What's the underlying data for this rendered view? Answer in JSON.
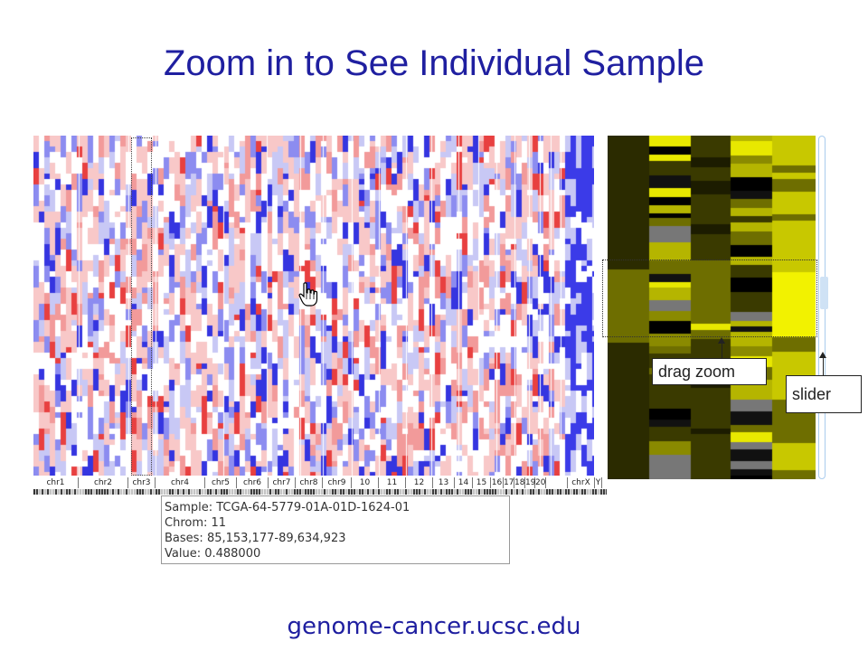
{
  "slide": {
    "title": "Zoom in to See Individual Sample",
    "footer": "genome-cancer.ucsc.edu"
  },
  "chromosomes": [
    "chr1",
    "chr2",
    "chr3",
    "chr4",
    "chr5",
    "chr6",
    "chr7",
    "chr8",
    "chr9",
    "10",
    "11",
    "12",
    "13",
    "14",
    "15",
    "16",
    "17",
    "18",
    "19",
    "20",
    "",
    "chrX",
    "Y"
  ],
  "tooltip": {
    "sample": "Sample: TCGA-64-5779-01A-01D-1624-01",
    "chrom": "Chrom: 11",
    "bases": "Bases: 85,153,177-89,634,923",
    "value": "Value: 0.488000"
  },
  "callouts": {
    "drag_zoom": "drag zoom",
    "slider": "slider"
  },
  "colors": {
    "title": "#1f1fa0",
    "heat_red": "#e83030",
    "heat_blue": "#2a2ae0",
    "clinical_yellow": "#e8e800",
    "clinical_olive": "#6e6e00",
    "clinical_dark": "#1a1a1a"
  },
  "icons": {
    "cursor": "hand-pointer-icon"
  }
}
